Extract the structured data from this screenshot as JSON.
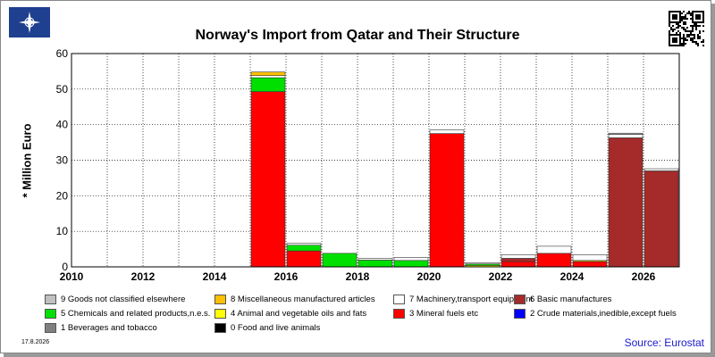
{
  "title": "Norway's Import from Qatar and Their Structure",
  "date": "17.8.2026",
  "source": "Source: Eurostat",
  "icons": {
    "logo": "compass-star-logo",
    "qr": "qr-code"
  },
  "chart_data": {
    "type": "bar",
    "stacked": true,
    "title": "Norway's Import from Qatar and Their Structure",
    "ylabel": "* Million Euro",
    "xlabel": "",
    "ylim": [
      0,
      60
    ],
    "yticks": [
      0,
      10,
      20,
      30,
      40,
      50,
      60
    ],
    "categories": [
      "2010",
      "2011",
      "2012",
      "2013",
      "2014",
      "2015",
      "2016",
      "2017",
      "2018",
      "2019",
      "2020",
      "2021",
      "2022",
      "2023",
      "2024",
      "2025",
      "2026"
    ],
    "xtick_labels": [
      "2010",
      "2012",
      "2014",
      "2016",
      "2018",
      "2020",
      "2022",
      "2024",
      "2026"
    ],
    "grid": true,
    "legend_position": "bottom",
    "series": [
      {
        "name": "0 Food and live animals",
        "color": "#000000",
        "values": [
          0,
          0,
          0,
          0,
          0,
          0,
          0,
          0,
          0,
          0,
          0,
          0,
          0,
          0,
          0,
          0,
          0
        ]
      },
      {
        "name": "1 Beverages and tobacco",
        "color": "#808080",
        "values": [
          0,
          0,
          0,
          0,
          0,
          0,
          0,
          0,
          0,
          0,
          0,
          0,
          0,
          0,
          0,
          0,
          0
        ]
      },
      {
        "name": "2 Crude materials,inedible,except fuels",
        "color": "#0000ff",
        "values": [
          0,
          0,
          0,
          0,
          0,
          0,
          0,
          0,
          0,
          0,
          0,
          0,
          0,
          0,
          0,
          0,
          0
        ]
      },
      {
        "name": "3 Mineral fuels etc",
        "color": "#ff0000",
        "values": [
          0,
          0,
          0,
          0,
          0,
          49.3,
          4.5,
          0,
          0,
          0,
          37.5,
          0,
          1.5,
          3.8,
          1.5,
          0,
          0
        ]
      },
      {
        "name": "4 Animal and vegetable oils and fats",
        "color": "#ffff00",
        "values": [
          0,
          0,
          0,
          0,
          0,
          0,
          0,
          0,
          0,
          0,
          0,
          0.4,
          0,
          0,
          0.3,
          0,
          0
        ]
      },
      {
        "name": "5 Chemicals and related products,n.e.s.",
        "color": "#00e000",
        "values": [
          0,
          0,
          0,
          0,
          0,
          3.9,
          1.6,
          3.8,
          1.9,
          1.8,
          0,
          0.4,
          0,
          0,
          0,
          0,
          0
        ]
      },
      {
        "name": "6 Basic manufactures",
        "color": "#a52a2a",
        "values": [
          0,
          0,
          0,
          0,
          0,
          0,
          0,
          0,
          0,
          0,
          0,
          0,
          0.9,
          0,
          0,
          36.3,
          27.0
        ]
      },
      {
        "name": "7 Machinery,transport equipment",
        "color": "#ffffff",
        "values": [
          0,
          0,
          0,
          0,
          0,
          0.6,
          0.5,
          0,
          0.5,
          0.8,
          1.0,
          0.3,
          1.0,
          2.0,
          1.6,
          1.0,
          0.6
        ]
      },
      {
        "name": "8 Miscellaneous manufactured articles",
        "color": "#ffc000",
        "values": [
          0,
          0,
          0,
          0,
          0,
          1.0,
          0,
          0,
          0,
          0,
          0,
          0,
          0,
          0,
          0,
          0,
          0
        ]
      },
      {
        "name": "9 Goods not classified elsewhere",
        "color": "#c0c0c0",
        "values": [
          0,
          0,
          0,
          0,
          0,
          0,
          0,
          0,
          0,
          0,
          0,
          0,
          0,
          0,
          0,
          0.3,
          0
        ]
      }
    ]
  },
  "legend_rows": [
    [
      "9 Goods not classified elsewhere",
      "8 Miscellaneous manufactured articles",
      "7 Machinery,transport equipment",
      "6 Basic manufactures"
    ],
    [
      "5 Chemicals and related products,n.e.s.",
      "4 Animal and vegetable oils and fats",
      "3 Mineral fuels etc",
      "2 Crude materials,inedible,except fuels"
    ],
    [
      "1 Beverages and tobacco",
      "0 Food and live animals"
    ]
  ]
}
